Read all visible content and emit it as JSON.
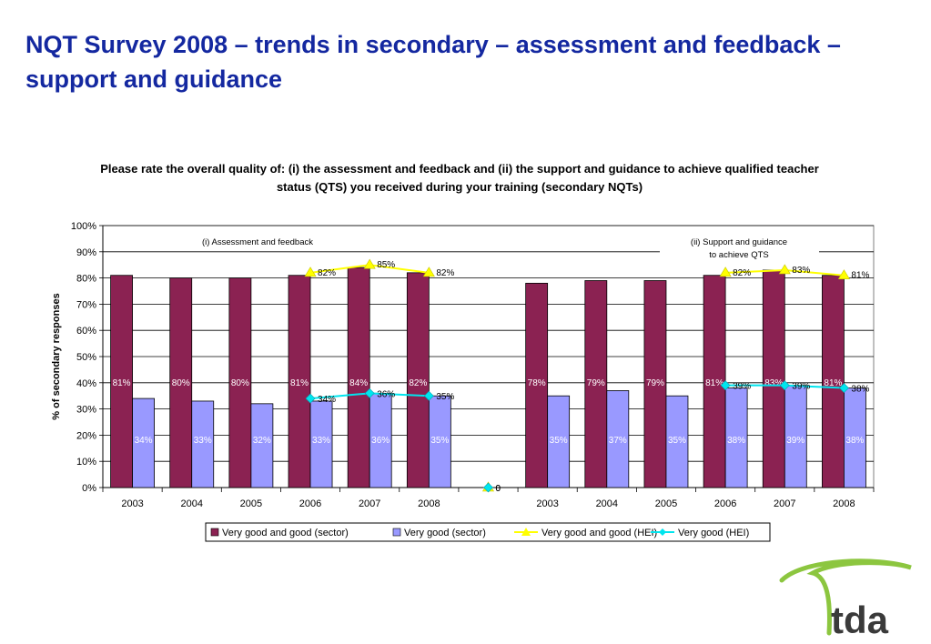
{
  "slide": {
    "title": "NQT Survey 2008 – trends in secondary – assessment and feedback – support and guidance"
  },
  "colors": {
    "title": "#1428a0",
    "sector_good": "#8b2252",
    "sector_very_good": "#9999ff",
    "hei_good": "#ffff00",
    "hei_very_good": "#00e5ee",
    "logo_swoosh": "#8cc63f",
    "logo_text": "#3a3a3a"
  },
  "logo": {
    "text": "tda"
  },
  "chart_data": {
    "type": "bar",
    "title": "Please rate the overall quality of: (i) the assessment and feedback and (ii) the support and guidance to achieve qualified teacher status (QTS) you received during your training (secondary NQTs)",
    "ylabel": "% of secondary responses",
    "ylim": [
      0,
      100
    ],
    "yticks": [
      "0%",
      "10%",
      "20%",
      "30%",
      "40%",
      "50%",
      "60%",
      "70%",
      "80%",
      "90%",
      "100%"
    ],
    "grid": true,
    "legend_position": "bottom",
    "categories": [
      "2003",
      "2004",
      "2005",
      "2006",
      "2007",
      "2008",
      "",
      "2003",
      "2004",
      "2005",
      "2006",
      "2007",
      "2008"
    ],
    "section_labels": [
      {
        "text": "(i) Assessment and feedback"
      },
      {
        "text": "(ii) Support and guidance to achieve QTS"
      }
    ],
    "series": [
      {
        "name": "Very good and good (sector)",
        "kind": "bar",
        "values": [
          81,
          80,
          80,
          81,
          84,
          82,
          null,
          78,
          79,
          79,
          81,
          83,
          81
        ],
        "labels": [
          "81%",
          "80%",
          "80%",
          "81%",
          "84%",
          "82%",
          "",
          "78%",
          "79%",
          "79%",
          "81%",
          "83%",
          "81%"
        ]
      },
      {
        "name": "Very good (sector)",
        "kind": "bar",
        "values": [
          34,
          33,
          32,
          33,
          36,
          35,
          null,
          35,
          37,
          35,
          38,
          39,
          38
        ],
        "labels": [
          "34%",
          "33%",
          "32%",
          "33%",
          "36%",
          "35%",
          "",
          "35%",
          "37%",
          "35%",
          "38%",
          "39%",
          "38%"
        ]
      },
      {
        "name": "Very good and good (HEI)",
        "kind": "line",
        "values": [
          null,
          null,
          null,
          82,
          85,
          82,
          0,
          null,
          null,
          null,
          82,
          83,
          81
        ],
        "labels": [
          "",
          "",
          "",
          "82%",
          "85%",
          "82%",
          "0",
          "",
          "",
          "",
          "82%",
          "83%",
          "81%"
        ]
      },
      {
        "name": "Very good (HEI)",
        "kind": "line",
        "values": [
          null,
          null,
          null,
          34,
          36,
          35,
          0,
          null,
          null,
          null,
          39,
          39,
          38
        ],
        "labels": [
          "",
          "",
          "",
          "34%",
          "36%",
          "35%",
          "0",
          "",
          "",
          "",
          "39%",
          "39%",
          "38%"
        ]
      }
    ]
  }
}
